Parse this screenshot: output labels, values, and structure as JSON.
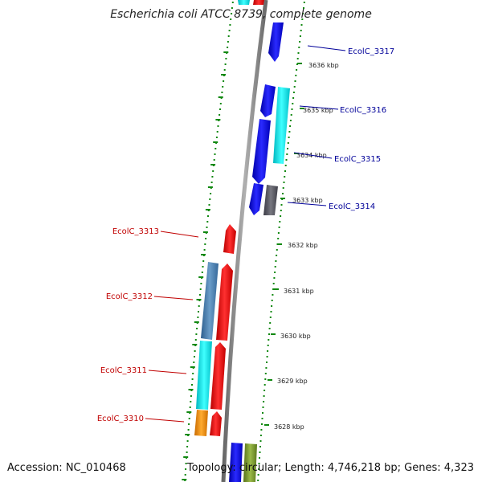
{
  "title": "Escherichia coli ATCC 8739, complete genome",
  "footer": {
    "accession": "Accession: NC_010468",
    "topology": "Topology: circular; Length: 4,746,218 bp; Genes: 4,323"
  },
  "ticks": [
    "3636 kbp",
    "3635 kbp",
    "3634 kbp",
    "3633 kbp",
    "3632 kbp",
    "3631 kbp",
    "3630 kbp",
    "3629 kbp",
    "3628 kbp"
  ],
  "genes_reverse": [
    "EcolC_3317",
    "EcolC_3316",
    "EcolC_3315",
    "EcolC_3314"
  ],
  "genes_forward": [
    "EcolC_3313",
    "EcolC_3312",
    "EcolC_3311",
    "EcolC_3310"
  ],
  "colors": {
    "backbone": "#808080",
    "blue": "#1010e0",
    "cyan": "#00e0e8",
    "red": "#ee1111",
    "steel": "#4a7fb0",
    "orange": "#f08c10",
    "dark_gray": "#555560",
    "olive": "#7a9a2a",
    "dots": "#118811",
    "label_forward": "#c00000",
    "label_reverse": "#000099"
  }
}
